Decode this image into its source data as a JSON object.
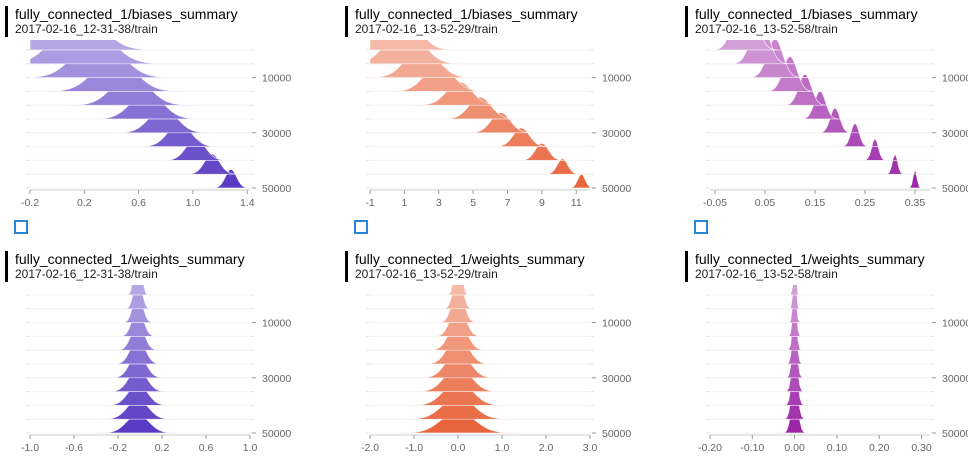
{
  "chart_data": [
    {
      "type": "area",
      "title": "fully_connected_1/biases_summary",
      "run": "2017-02-16_12-31-38/train",
      "color": "#5b3bc4",
      "xticks": [
        -0.2,
        0.2,
        0.6,
        1.0,
        1.4
      ],
      "xtick_labels": [
        "-0.2",
        "0.2",
        "0.6",
        "1.0",
        "1.4"
      ],
      "xlim": [
        -0.2,
        1.42
      ],
      "yticks": [
        10000,
        30000,
        50000
      ],
      "ytick_labels": [
        "10000",
        "30000",
        "50000"
      ],
      "ylim": [
        0,
        50000
      ],
      "steps": [
        0,
        5000,
        10000,
        15000,
        20000,
        25000,
        30000,
        35000,
        40000,
        45000,
        50000
      ],
      "peak_centers": [
        0.05,
        0.18,
        0.3,
        0.42,
        0.54,
        0.66,
        0.78,
        0.9,
        1.02,
        1.14,
        1.28
      ],
      "peak_heights": [
        1.0,
        0.7,
        0.55,
        0.45,
        0.4,
        0.35,
        0.32,
        0.3,
        0.28,
        0.26,
        0.24
      ],
      "spread_start": 0.7,
      "spread_end": 0.15
    },
    {
      "type": "area",
      "title": "fully_connected_1/biases_summary",
      "run": "2017-02-16_13-52-29/train",
      "color": "#e8643c",
      "xticks": [
        -1,
        1,
        3,
        5,
        7,
        9,
        11
      ],
      "xtick_labels": [
        "-1",
        "1",
        "3",
        "5",
        "7",
        "9",
        "11"
      ],
      "xlim": [
        -1,
        11.8
      ],
      "yticks": [
        10000,
        30000,
        50000
      ],
      "ytick_labels": [
        "10000",
        "30000",
        "50000"
      ],
      "ylim": [
        0,
        50000
      ],
      "steps": [
        0,
        5000,
        10000,
        15000,
        20000,
        25000,
        30000,
        35000,
        40000,
        45000,
        50000
      ],
      "peak_centers": [
        0.2,
        1.0,
        2.0,
        3.0,
        4.2,
        5.4,
        6.6,
        7.8,
        9.0,
        10.2,
        11.3
      ],
      "peak_heights": [
        1.0,
        0.5,
        0.4,
        0.35,
        0.3,
        0.28,
        0.26,
        0.24,
        0.22,
        0.2,
        0.18
      ],
      "spread_start": 0.5,
      "spread_end": 0.1
    },
    {
      "type": "area",
      "title": "fully_connected_1/biases_summary",
      "run": "2017-02-16_13-52-58/train",
      "color": "#9c27a8",
      "xticks": [
        -0.05,
        0.05,
        0.15,
        0.25,
        0.35
      ],
      "xtick_labels": [
        "-0.05",
        "0.05",
        "0.15",
        "0.25",
        "0.35"
      ],
      "xlim": [
        -0.06,
        0.38
      ],
      "yticks": [
        10000,
        30000,
        50000
      ],
      "ytick_labels": [
        "10000",
        "30000",
        "50000"
      ],
      "ylim": [
        0,
        50000
      ],
      "steps": [
        0,
        5000,
        10000,
        15000,
        20000,
        25000,
        30000,
        35000,
        40000,
        45000,
        50000
      ],
      "peak_centers": [
        0.01,
        0.04,
        0.07,
        0.1,
        0.13,
        0.16,
        0.19,
        0.23,
        0.27,
        0.31,
        0.35
      ],
      "peak_heights": [
        1.0,
        0.6,
        0.5,
        0.45,
        0.4,
        0.36,
        0.32,
        0.3,
        0.28,
        0.26,
        0.24
      ],
      "spread_start": 0.25,
      "spread_end": 0.05
    },
    {
      "type": "area",
      "title": "fully_connected_1/weights_summary",
      "run": "2017-02-16_12-31-38/train",
      "color": "#5b3bc4",
      "xticks": [
        -1.0,
        -0.6,
        -0.2,
        0.2,
        0.6,
        1.0
      ],
      "xtick_labels": [
        "-1.0",
        "-0.6",
        "-0.2",
        "0.2",
        "0.6",
        "1.0"
      ],
      "xlim": [
        -1.0,
        1.0
      ],
      "yticks": [
        10000,
        30000,
        50000
      ],
      "ytick_labels": [
        "10000",
        "30000",
        "50000"
      ],
      "ylim": [
        0,
        50000
      ],
      "steps": [
        0,
        5000,
        10000,
        15000,
        20000,
        25000,
        30000,
        35000,
        40000,
        45000,
        50000
      ],
      "peak_centers": [
        -0.02,
        -0.02,
        -0.02,
        -0.02,
        -0.02,
        -0.02,
        -0.02,
        -0.02,
        -0.02,
        -0.02,
        -0.02
      ],
      "peak_heights": [
        1.0,
        0.45,
        0.4,
        0.38,
        0.36,
        0.34,
        0.32,
        0.3,
        0.28,
        0.26,
        0.24
      ],
      "spread_start": 0.08,
      "spread_end": 0.3
    },
    {
      "type": "area",
      "title": "fully_connected_1/weights_summary",
      "run": "2017-02-16_13-52-29/train",
      "color": "#e8643c",
      "xticks": [
        -2.0,
        -1.0,
        0.0,
        1.0,
        2.0,
        3.0
      ],
      "xtick_labels": [
        "-2.0",
        "-1.0",
        "0.0",
        "1.0",
        "2.0",
        "3.0"
      ],
      "xlim": [
        -2.0,
        3.0
      ],
      "yticks": [
        10000,
        30000,
        50000
      ],
      "ytick_labels": [
        "10000",
        "30000",
        "50000"
      ],
      "ylim": [
        0,
        50000
      ],
      "steps": [
        0,
        5000,
        10000,
        15000,
        20000,
        25000,
        30000,
        35000,
        40000,
        45000,
        50000
      ],
      "peak_centers": [
        0.0,
        0.0,
        0.0,
        0.0,
        0.0,
        0.0,
        0.0,
        0.0,
        0.0,
        0.0,
        0.0
      ],
      "peak_heights": [
        1.0,
        0.5,
        0.45,
        0.42,
        0.4,
        0.38,
        0.36,
        0.34,
        0.32,
        0.3,
        0.28
      ],
      "spread_start": 0.08,
      "spread_end": 0.45
    },
    {
      "type": "area",
      "title": "fully_connected_1/weights_summary",
      "run": "2017-02-16_13-52-58/train",
      "color": "#9c27a8",
      "xticks": [
        -0.2,
        -0.1,
        0.0,
        0.1,
        0.2,
        0.3
      ],
      "xtick_labels": [
        "-0.20",
        "-0.10",
        "0.00",
        "0.10",
        "0.20",
        "0.30"
      ],
      "xlim": [
        -0.2,
        0.32
      ],
      "yticks": [
        10000,
        30000,
        50000
      ],
      "ytick_labels": [
        "10000",
        "30000",
        "50000"
      ],
      "ylim": [
        0,
        50000
      ],
      "steps": [
        0,
        5000,
        10000,
        15000,
        20000,
        25000,
        30000,
        35000,
        40000,
        45000,
        50000
      ],
      "peak_centers": [
        0.0,
        0.0,
        0.0,
        0.0,
        0.0,
        0.0,
        0.0,
        0.0,
        0.0,
        0.0,
        0.0
      ],
      "peak_heights": [
        0.7,
        0.6,
        0.55,
        0.55,
        0.55,
        0.55,
        0.55,
        0.55,
        0.55,
        0.55,
        0.55
      ],
      "spread_start": 0.03,
      "spread_end": 0.09
    }
  ]
}
